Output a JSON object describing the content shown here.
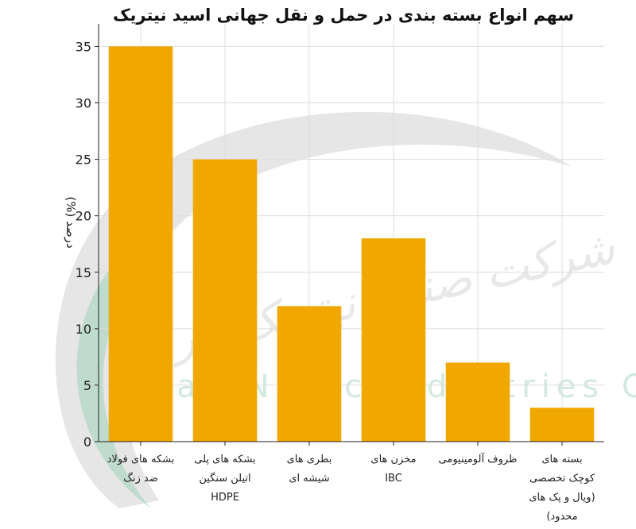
{
  "chart_data": {
    "type": "bar",
    "title": "سهم انواع بسته بندی در حمل و نقل جهانی اسید نیتریک",
    "xlabel": "",
    "ylabel": "درصد (%)",
    "ylim": [
      0,
      37
    ],
    "yticks": [
      0,
      5,
      10,
      15,
      20,
      25,
      30,
      35
    ],
    "grid": true,
    "bar_color": "#f0a800",
    "categories": [
      [
        "بشکه های فولاد",
        "ضد زنگ"
      ],
      [
        "بشکه های پلی",
        "اتیلن سنگین",
        "HDPE"
      ],
      [
        "بطری های",
        "شیشه ای"
      ],
      [
        "مخزن های",
        "IBC"
      ],
      [
        "ظروف آلومینیومی"
      ],
      [
        "بسته های",
        "کوچک تخصصی",
        "(ویال و پک های",
        "محدود)"
      ]
    ],
    "values": [
      35,
      25,
      12,
      18,
      7,
      3
    ]
  },
  "watermark": {
    "latin": "Iran Nitric Industries Co",
    "persian": "شرکت صنایع نیتریک ایران",
    "colors": {
      "arc_gray": "#b8b8b8",
      "arc_green": "#8fcfb0"
    }
  }
}
